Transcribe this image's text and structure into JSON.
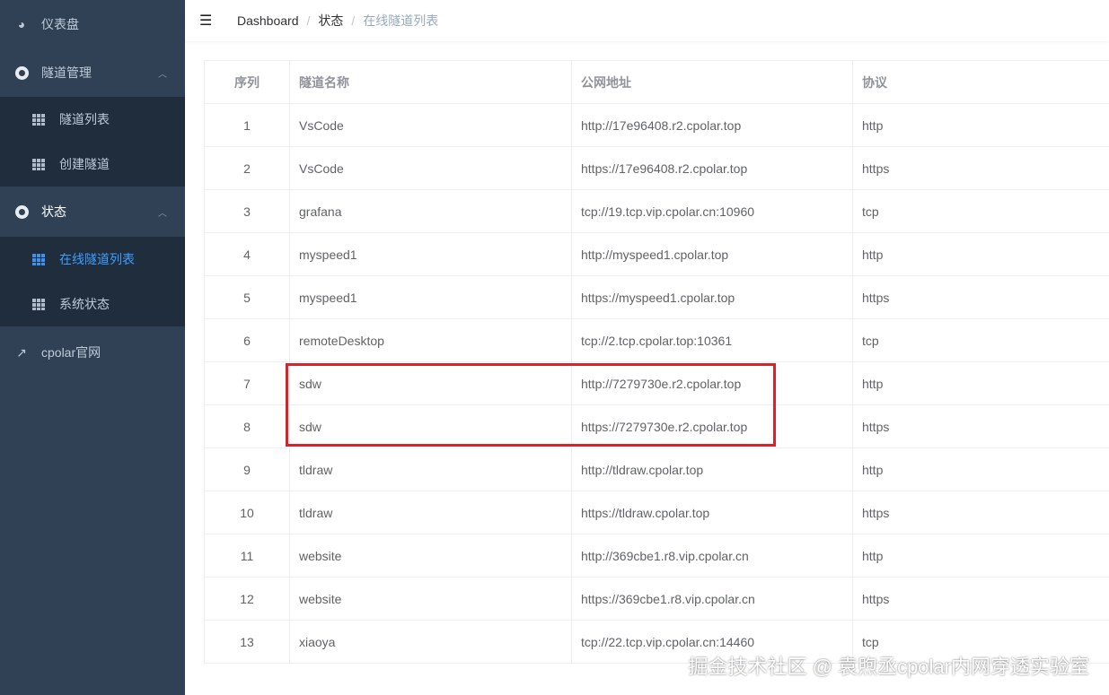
{
  "sidebar": {
    "dashboard": "仪表盘",
    "tunnel_mgmt": "隧道管理",
    "tunnel_list": "隧道列表",
    "create_tunnel": "创建隧道",
    "status": "状态",
    "online_list": "在线隧道列表",
    "system_status": "系统状态",
    "website": "cpolar官网"
  },
  "breadcrumb": [
    "Dashboard",
    "状态",
    "在线隧道列表"
  ],
  "table": {
    "headers": [
      "序列",
      "隧道名称",
      "公网地址",
      "协议"
    ],
    "rows": [
      [
        "1",
        "VsCode",
        "http://17e96408.r2.cpolar.top",
        "http"
      ],
      [
        "2",
        "VsCode",
        "https://17e96408.r2.cpolar.top",
        "https"
      ],
      [
        "3",
        "grafana",
        "tcp://19.tcp.vip.cpolar.cn:10960",
        "tcp"
      ],
      [
        "4",
        "myspeed1",
        "http://myspeed1.cpolar.top",
        "http"
      ],
      [
        "5",
        "myspeed1",
        "https://myspeed1.cpolar.top",
        "https"
      ],
      [
        "6",
        "remoteDesktop",
        "tcp://2.tcp.cpolar.top:10361",
        "tcp"
      ],
      [
        "7",
        "sdw",
        "http://7279730e.r2.cpolar.top",
        "http"
      ],
      [
        "8",
        "sdw",
        "https://7279730e.r2.cpolar.top",
        "https"
      ],
      [
        "9",
        "tldraw",
        "http://tldraw.cpolar.top",
        "http"
      ],
      [
        "10",
        "tldraw",
        "https://tldraw.cpolar.top",
        "https"
      ],
      [
        "11",
        "website",
        "http://369cbe1.r8.vip.cpolar.cn",
        "http"
      ],
      [
        "12",
        "website",
        "https://369cbe1.r8.vip.cpolar.cn",
        "https"
      ],
      [
        "13",
        "xiaoya",
        "tcp://22.tcp.vip.cpolar.cn:14460",
        "tcp"
      ]
    ]
  },
  "watermark": "掘金技术社区 @ 袁煦丞cpolar内网穿透实验室",
  "colors": {
    "sidebar": "#304156",
    "submenu": "#1f2d3d",
    "active": "#409eff",
    "highlight": "#d9232a"
  }
}
